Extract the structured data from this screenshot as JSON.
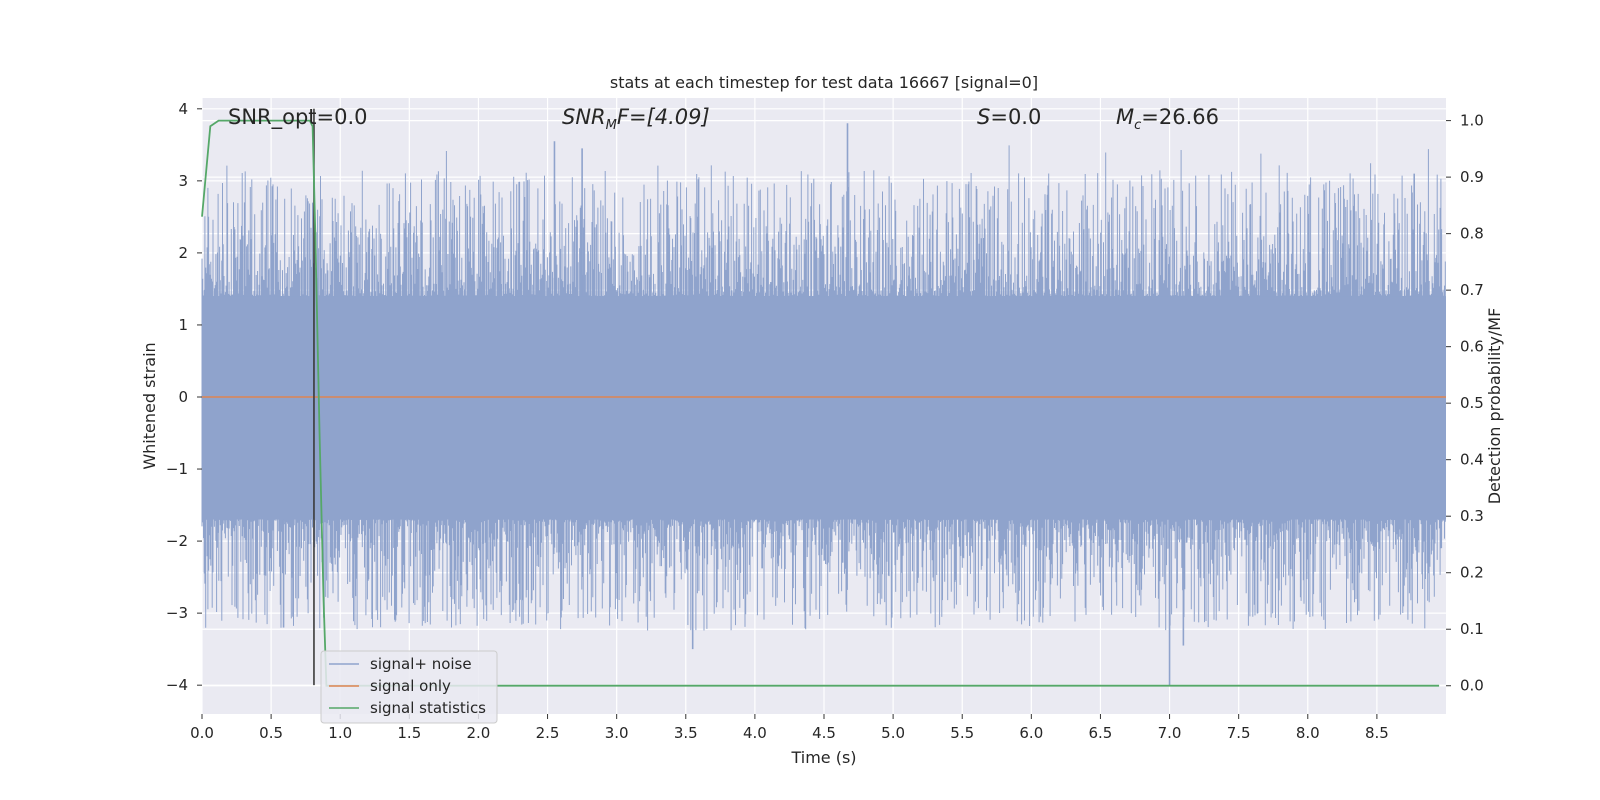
{
  "chart_data": {
    "type": "line",
    "title": "stats at each timestep for test data 16667 [signal=0]",
    "xlabel": "Time (s)",
    "ylabel": "Whitened strain",
    "y2label": "Detection probability/MF",
    "xlim": [
      0.0,
      9.0
    ],
    "ylim": [
      -4.4,
      4.15
    ],
    "y2lim": [
      -0.05,
      1.04
    ],
    "x_ticks": [
      0.0,
      0.5,
      1.0,
      1.5,
      2.0,
      2.5,
      3.0,
      3.5,
      4.0,
      4.5,
      5.0,
      5.5,
      6.0,
      6.5,
      7.0,
      7.5,
      8.0,
      8.5
    ],
    "x_tick_labels": [
      "0.0",
      "0.5",
      "1.0",
      "1.5",
      "2.0",
      "2.5",
      "3.0",
      "3.5",
      "4.0",
      "4.5",
      "5.0",
      "5.5",
      "6.0",
      "6.5",
      "7.0",
      "7.5",
      "8.0",
      "8.5"
    ],
    "y_ticks": [
      4,
      3,
      2,
      1,
      0,
      -1,
      -2,
      -3,
      -4
    ],
    "y_tick_labels": [
      "4",
      "3",
      "2",
      "1",
      "0",
      "−1",
      "−2",
      "−3",
      "−4"
    ],
    "y2_ticks": [
      1.0,
      0.9,
      0.8,
      0.7,
      0.6,
      0.5,
      0.4,
      0.3,
      0.2,
      0.1,
      0.0
    ],
    "y2_tick_labels": [
      "1.0",
      "0.9",
      "0.8",
      "0.7",
      "0.6",
      "0.5",
      "0.4",
      "0.3",
      "0.2",
      "0.1",
      "0.0"
    ],
    "grid": true,
    "legend_position": "lower-left",
    "series": [
      {
        "name": "signal+ noise",
        "axis": "left",
        "color": "#8fa3cc",
        "kind": "noise-band",
        "typical_range": [
          -1.7,
          1.4
        ],
        "extremes": [
          {
            "x": 2.55,
            "y": 3.55
          },
          {
            "x": 2.75,
            "y": 3.45
          },
          {
            "x": 4.67,
            "y": 3.8
          },
          {
            "x": 8.77,
            "y": 3.1
          },
          {
            "x": 3.55,
            "y": -3.5
          },
          {
            "x": 7.0,
            "y": -4.0
          },
          {
            "x": 7.1,
            "y": -3.45
          },
          {
            "x": 1.4,
            "y": -3.1
          },
          {
            "x": 0.59,
            "y": -3.2
          }
        ]
      },
      {
        "name": "signal only",
        "axis": "left",
        "color": "#dd8452",
        "x": [
          0.0,
          9.0
        ],
        "y": [
          0.0,
          0.0
        ]
      },
      {
        "name": "signal statistics",
        "axis": "right",
        "color": "#55a868",
        "x": [
          0.0,
          0.06,
          0.12,
          0.3,
          0.5,
          0.7,
          0.78,
          0.8,
          0.82,
          0.85,
          0.88,
          0.9,
          1.0,
          2.0,
          4.0,
          6.0,
          8.0,
          8.95
        ],
        "y": [
          0.83,
          0.99,
          1.0,
          1.0,
          1.0,
          1.0,
          1.0,
          0.99,
          0.8,
          0.45,
          0.15,
          0.0,
          0.0,
          0.0,
          0.0,
          0.0,
          0.0,
          0.0
        ]
      }
    ],
    "vertical_line": {
      "x": 0.81,
      "y_from": -4.0,
      "y_to": 4.0,
      "color": "#3a3a3a"
    },
    "annotations": [
      {
        "text": "SNR_opt=0.0",
        "x": 0.2
      },
      {
        "text": "SNRₘF=[4.09]",
        "x": 2.6,
        "main": "SNR",
        "sub": "M",
        "tail": "F=[4.09]"
      },
      {
        "text": "S=0.0",
        "x": 5.6,
        "main": "S",
        "sub": "",
        "tail": "=0.0"
      },
      {
        "text": "Mᶜ=26.66",
        "x": 6.6,
        "main": "M",
        "sub": "c",
        "tail": "=26.66"
      }
    ]
  },
  "colors": {
    "plot_background": "#eaeaf2",
    "grid": "#ffffff",
    "noise": "#8fa3cc",
    "signal": "#dd8452",
    "statistics": "#55a868"
  }
}
